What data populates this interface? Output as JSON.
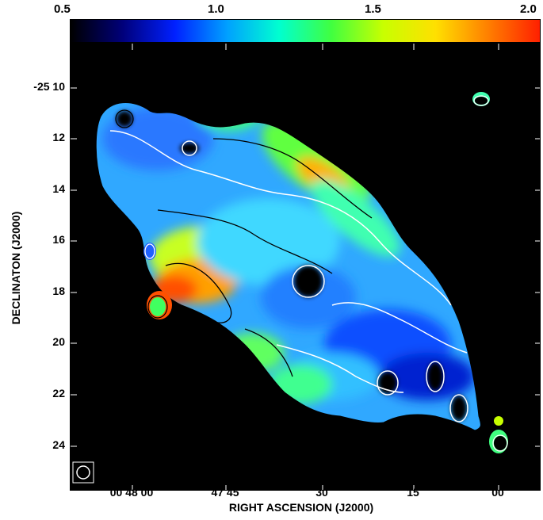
{
  "colorbar": {
    "ticks": [
      "0.5",
      "1.0",
      "1.5",
      "2.0"
    ],
    "colors": [
      "#000000",
      "#00007a",
      "#0020ff",
      "#00a0ff",
      "#00ffd0",
      "#40ff40",
      "#c8ff00",
      "#ffe000",
      "#ff8000",
      "#ff2000"
    ]
  },
  "axes": {
    "xlabel": "RIGHT ASCENSION (J2000)",
    "ylabel": "DECLINATON (J2000)",
    "x_ticks": [
      "00 48 00",
      "47 45",
      "30",
      "15",
      "00"
    ],
    "y_ticks": [
      "-25 10",
      "12",
      "14",
      "16",
      "18",
      "20",
      "22",
      "24"
    ]
  },
  "beam": {
    "icon": "beam-ellipse-icon"
  }
}
